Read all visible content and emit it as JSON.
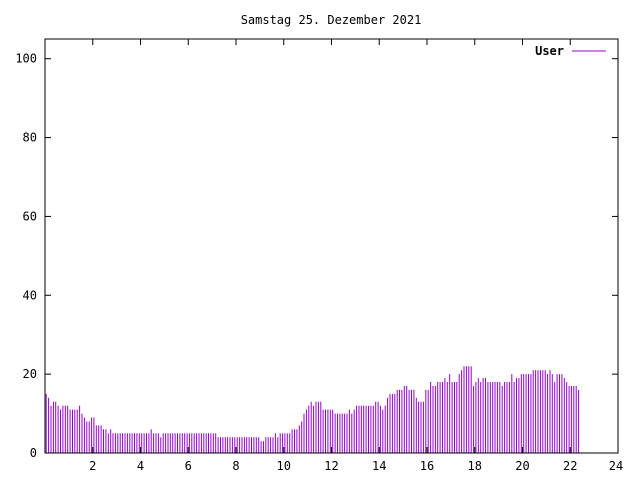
{
  "chart_data": {
    "type": "bar",
    "title": "Samstag 25. Dezember 2021",
    "xlabel": "",
    "ylabel": "",
    "xlim": [
      0,
      24
    ],
    "ylim": [
      0,
      105
    ],
    "xticks": [
      2,
      4,
      6,
      8,
      10,
      12,
      14,
      16,
      18,
      20,
      22,
      24
    ],
    "yticks": [
      0,
      20,
      40,
      60,
      80,
      100
    ],
    "grid": false,
    "legend_position": "top-right",
    "series": [
      {
        "name": "User",
        "color": "#9400d3",
        "x_step_hours": 0.1,
        "values": [
          15,
          14,
          12,
          13,
          13,
          12,
          11,
          12,
          12,
          12,
          11,
          11,
          11,
          11,
          12,
          10,
          9,
          8,
          8,
          9,
          9,
          7,
          7,
          7,
          6,
          6,
          5,
          6,
          5,
          5,
          5,
          5,
          5,
          5,
          5,
          5,
          5,
          5,
          5,
          5,
          5,
          5,
          5,
          5,
          6,
          5,
          5,
          5,
          4,
          5,
          5,
          5,
          5,
          5,
          5,
          5,
          5,
          5,
          5,
          5,
          5,
          5,
          5,
          5,
          5,
          5,
          5,
          5,
          5,
          5,
          5,
          5,
          4,
          4,
          4,
          4,
          4,
          4,
          4,
          4,
          4,
          4,
          4,
          4,
          4,
          4,
          4,
          4,
          4,
          4,
          3,
          3,
          4,
          4,
          4,
          4,
          5,
          4,
          5,
          5,
          5,
          5,
          5,
          6,
          6,
          6,
          7,
          8,
          10,
          11,
          12,
          13,
          12,
          13,
          13,
          13,
          11,
          11,
          11,
          11,
          11,
          10,
          10,
          10,
          10,
          10,
          10,
          11,
          10,
          11,
          12,
          12,
          12,
          12,
          12,
          12,
          12,
          12,
          13,
          13,
          12,
          11,
          12,
          14,
          15,
          15,
          15,
          16,
          16,
          16,
          17,
          17,
          16,
          16,
          16,
          14,
          13,
          13,
          13,
          16,
          16,
          18,
          17,
          17,
          18,
          18,
          18,
          19,
          18,
          20,
          18,
          18,
          18,
          20,
          21,
          22,
          22,
          22,
          22,
          17,
          18,
          19,
          18,
          19,
          19,
          18,
          18,
          18,
          18,
          18,
          18,
          17,
          18,
          18,
          18,
          20,
          18,
          19,
          19,
          20,
          20,
          20,
          20,
          20,
          21,
          21,
          21,
          21,
          21,
          21,
          20,
          21,
          20,
          18,
          20,
          20,
          20,
          19,
          18,
          17,
          17,
          17,
          17,
          16
        ]
      }
    ]
  }
}
